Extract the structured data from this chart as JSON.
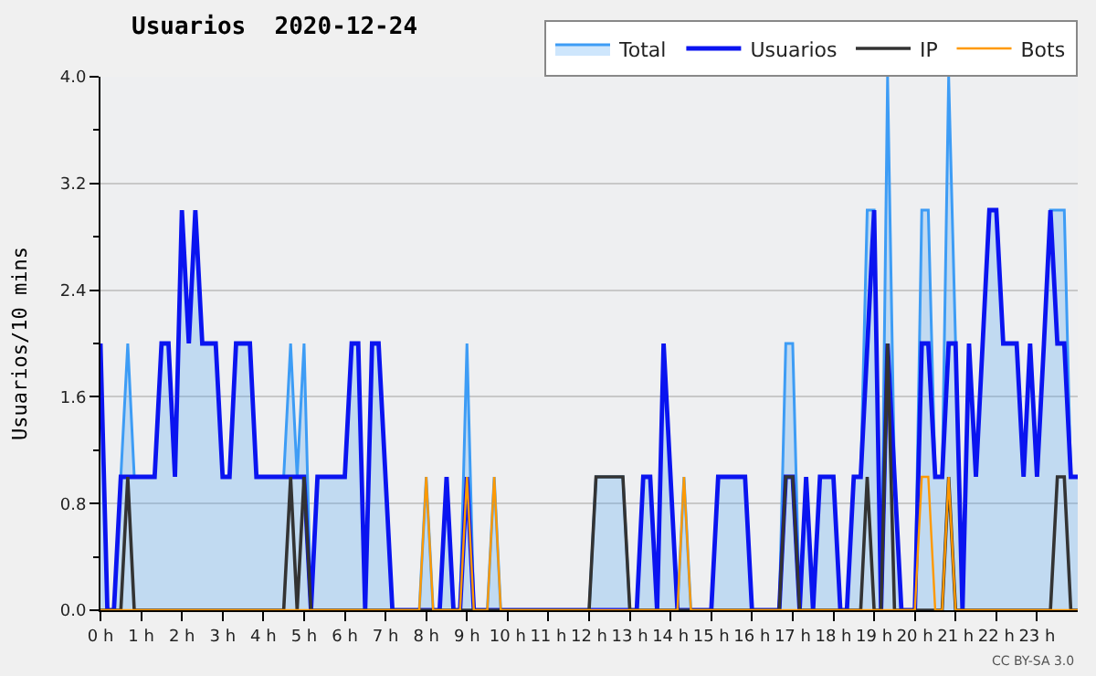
{
  "chart_data": {
    "type": "line",
    "title": "Usuarios  2020-12-24",
    "ylabel": "Usuarios/10 mins",
    "annotations": [
      "CC BY-SA 3.0"
    ],
    "xlim": [
      0,
      24
    ],
    "ylim": [
      0,
      4
    ],
    "xticks": [
      {
        "value": 0,
        "label": "0 h"
      },
      {
        "value": 1,
        "label": "1 h"
      },
      {
        "value": 2,
        "label": "2 h"
      },
      {
        "value": 3,
        "label": "3 h"
      },
      {
        "value": 4,
        "label": "4 h"
      },
      {
        "value": 5,
        "label": "5 h"
      },
      {
        "value": 6,
        "label": "6 h"
      },
      {
        "value": 7,
        "label": "7 h"
      },
      {
        "value": 8,
        "label": "8 h"
      },
      {
        "value": 9,
        "label": "9 h"
      },
      {
        "value": 10,
        "label": "10 h"
      },
      {
        "value": 11,
        "label": "11 h"
      },
      {
        "value": 12,
        "label": "12 h"
      },
      {
        "value": 13,
        "label": "13 h"
      },
      {
        "value": 14,
        "label": "14 h"
      },
      {
        "value": 15,
        "label": "15 h"
      },
      {
        "value": 16,
        "label": "16 h"
      },
      {
        "value": 17,
        "label": "17 h"
      },
      {
        "value": 18,
        "label": "18 h"
      },
      {
        "value": 19,
        "label": "19 h"
      },
      {
        "value": 20,
        "label": "20 h"
      },
      {
        "value": 21,
        "label": "21 h"
      },
      {
        "value": 22,
        "label": "22 h"
      },
      {
        "value": 23,
        "label": "23 h"
      }
    ],
    "yticks": [
      {
        "value": 0,
        "label": "0.0"
      },
      {
        "value": 0.4,
        "label": null
      },
      {
        "value": 0.8,
        "label": "0.8"
      },
      {
        "value": 1.2,
        "label": null
      },
      {
        "value": 1.6,
        "label": "1.6"
      },
      {
        "value": 2.0,
        "label": null
      },
      {
        "value": 2.4,
        "label": "2.4"
      },
      {
        "value": 2.8,
        "label": null
      },
      {
        "value": 3.2,
        "label": "3.2"
      },
      {
        "value": 3.6,
        "label": null
      },
      {
        "value": 4.0,
        "label": "4.0"
      }
    ],
    "grid": "y",
    "legend": "top right",
    "series": [
      {
        "name": "Total",
        "type": "area",
        "color": "#3d9cf5",
        "x": [
          0,
          0.17,
          0.33,
          0.5,
          0.67,
          0.83,
          1.33,
          1.5,
          1.67,
          1.83,
          2,
          2.17,
          2.33,
          2.5,
          2.83,
          3,
          3.17,
          3.33,
          3.67,
          3.83,
          4.5,
          4.67,
          4.83,
          5,
          5.17,
          5.33,
          6,
          6.17,
          6.33,
          6.5,
          6.67,
          6.83,
          7.17,
          7.83,
          8,
          8.17,
          8.33,
          8.5,
          8.67,
          8.83,
          9,
          9.17,
          9.5,
          9.67,
          9.83,
          12,
          12.17,
          12.83,
          13,
          13.17,
          13.33,
          13.5,
          13.67,
          13.83,
          14.17,
          14.33,
          14.5,
          15,
          15.17,
          15.83,
          16,
          16.67,
          16.83,
          17,
          17.17,
          17.33,
          17.5,
          17.67,
          18,
          18.17,
          18.33,
          18.5,
          18.67,
          18.83,
          19,
          19.17,
          19.33,
          19.5,
          19.67,
          20,
          20.17,
          20.33,
          20.5,
          20.67,
          20.83,
          21,
          21.17,
          21.33,
          21.5,
          21.83,
          22,
          22.17,
          22.5,
          22.67,
          22.83,
          23,
          23.17,
          23.33,
          23.67,
          23.83,
          24
        ],
        "values": [
          2,
          0,
          0,
          1,
          2,
          1,
          1,
          2,
          2,
          1,
          3,
          2,
          3,
          2,
          2,
          1,
          1,
          2,
          2,
          1,
          1,
          2,
          1,
          2,
          0,
          1,
          1,
          2,
          2,
          0,
          2,
          2,
          0,
          0,
          1,
          0,
          0,
          1,
          0,
          0,
          2,
          0,
          0,
          1,
          0,
          0,
          1,
          1,
          0,
          0,
          1,
          1,
          0,
          2,
          0,
          1,
          0,
          0,
          1,
          1,
          0,
          0,
          2,
          2,
          0,
          1,
          0,
          1,
          1,
          0,
          0,
          1,
          1,
          3,
          3,
          0,
          4,
          1,
          0,
          0,
          3,
          3,
          1,
          1,
          4,
          2,
          0,
          2,
          1,
          3,
          3,
          2,
          2,
          1,
          2,
          1,
          2,
          3,
          3,
          1,
          1
        ]
      },
      {
        "name": "Usuarios",
        "color": "#0a14f0",
        "x": [
          0,
          0.17,
          0.33,
          0.5,
          1.33,
          1.5,
          1.67,
          1.83,
          2,
          2.17,
          2.33,
          2.5,
          2.83,
          3,
          3.17,
          3.33,
          3.67,
          3.83,
          5,
          5.17,
          5.33,
          6,
          6.17,
          6.33,
          6.5,
          6.67,
          6.83,
          7.17,
          8.33,
          8.5,
          8.67,
          8.83,
          9,
          9.17,
          13.17,
          13.33,
          13.5,
          13.67,
          13.83,
          14.17,
          15,
          15.17,
          15.83,
          16,
          16.67,
          16.83,
          17,
          17.17,
          17.33,
          17.5,
          17.67,
          18,
          18.17,
          18.33,
          18.5,
          18.67,
          19,
          19.17,
          19.33,
          19.5,
          19.67,
          20,
          20.17,
          20.33,
          20.5,
          20.67,
          20.83,
          21,
          21.17,
          21.33,
          21.5,
          21.83,
          22,
          22.17,
          22.5,
          22.67,
          22.83,
          23,
          23.17,
          23.33,
          23.5,
          23.67,
          23.83,
          24
        ],
        "values": [
          2,
          0,
          0,
          1,
          1,
          2,
          2,
          1,
          3,
          2,
          3,
          2,
          2,
          1,
          1,
          2,
          2,
          1,
          1,
          0,
          1,
          1,
          2,
          2,
          0,
          2,
          2,
          0,
          0,
          1,
          0,
          0,
          1,
          0,
          0,
          1,
          1,
          0,
          2,
          0,
          0,
          1,
          1,
          0,
          0,
          1,
          1,
          0,
          1,
          0,
          1,
          1,
          0,
          0,
          1,
          1,
          3,
          0,
          2,
          1,
          0,
          0,
          2,
          2,
          1,
          1,
          2,
          2,
          0,
          2,
          1,
          3,
          3,
          2,
          2,
          1,
          2,
          1,
          2,
          3,
          2,
          2,
          1,
          1
        ]
      },
      {
        "name": "IP",
        "color": "#333333",
        "x": [
          0,
          0.5,
          0.67,
          0.83,
          4.5,
          4.67,
          4.83,
          5,
          5.17,
          12,
          12.17,
          12.83,
          13,
          16.67,
          16.83,
          17,
          17.17,
          18.67,
          18.83,
          19,
          19.17,
          19.33,
          19.5,
          20.67,
          20.83,
          21,
          23.33,
          23.5,
          23.67,
          23.83,
          24
        ],
        "values": [
          0,
          0,
          1,
          0,
          0,
          1,
          0,
          1,
          0,
          0,
          1,
          1,
          0,
          0,
          1,
          1,
          0,
          0,
          1,
          0,
          0,
          2,
          0,
          0,
          1,
          0,
          0,
          1,
          1,
          0,
          0
        ]
      },
      {
        "name": "Bots",
        "color": "#ff9900",
        "x": [
          0,
          7.83,
          8,
          8.17,
          8.83,
          9,
          9.17,
          9.5,
          9.67,
          9.83,
          14.17,
          14.33,
          14.5,
          20,
          20.17,
          20.33,
          20.5,
          20.67,
          20.83,
          21,
          24
        ],
        "values": [
          0,
          0,
          1,
          0,
          0,
          1,
          0,
          0,
          1,
          0,
          0,
          1,
          0,
          0,
          1,
          1,
          0,
          0,
          1,
          0,
          0
        ]
      }
    ]
  }
}
